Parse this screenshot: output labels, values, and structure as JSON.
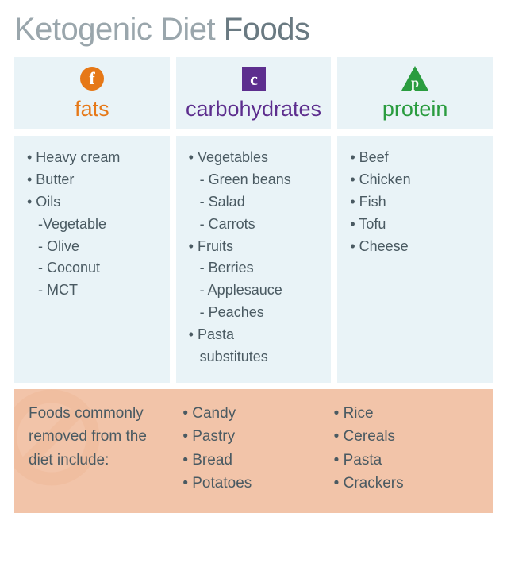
{
  "title_light": "Ketogenic Diet ",
  "title_bold": "Foods",
  "background_color": "#ffffff",
  "panel_color": "#e9f3f7",
  "removed_panel_color": "#f2c4a9",
  "text_color": "#4a5a62",
  "columns": {
    "fats": {
      "icon_letter": "f",
      "icon_shape": "circle",
      "color": "#e67817",
      "title": "fats",
      "items": [
        {
          "text": "Heavy cream",
          "sub": false
        },
        {
          "text": "Butter",
          "sub": false
        },
        {
          "text": "Oils",
          "sub": false
        },
        {
          "text": "Vegetable",
          "sub": true,
          "dash": "-"
        },
        {
          "text": "Olive",
          "sub": true,
          "dash": "- "
        },
        {
          "text": "Coconut",
          "sub": true,
          "dash": "- "
        },
        {
          "text": "MCT",
          "sub": true,
          "dash": "- "
        }
      ]
    },
    "carbs": {
      "icon_letter": "c",
      "icon_shape": "square",
      "color": "#5d2e8e",
      "title": "carbohydrates",
      "items": [
        {
          "text": "Vegetables",
          "sub": false
        },
        {
          "text": "Green beans",
          "sub": true,
          "dash": "- "
        },
        {
          "text": "Salad",
          "sub": true,
          "dash": "- "
        },
        {
          "text": "Carrots",
          "sub": true,
          "dash": "- "
        },
        {
          "text": "Fruits",
          "sub": false
        },
        {
          "text": "Berries",
          "sub": true,
          "dash": "- "
        },
        {
          "text": "Applesauce",
          "sub": true,
          "dash": "- "
        },
        {
          "text": "Peaches",
          "sub": true,
          "dash": "- "
        },
        {
          "text": "Pasta",
          "sub": false
        },
        {
          "text": "substitutes",
          "sub": true,
          "dash": ""
        }
      ]
    },
    "protein": {
      "icon_letter": "p",
      "icon_shape": "triangle",
      "color": "#2a9c3f",
      "title": "protein",
      "items": [
        {
          "text": "Beef",
          "sub": false
        },
        {
          "text": "Chicken",
          "sub": false
        },
        {
          "text": "Fish",
          "sub": false
        },
        {
          "text": "Tofu",
          "sub": false
        },
        {
          "text": "Cheese",
          "sub": false
        }
      ]
    }
  },
  "removed": {
    "label": "Foods commonly removed from the diet include:",
    "no_symbol_color": "#e9a47e",
    "col1": [
      "Candy",
      "Pastry",
      "Bread",
      "Potatoes"
    ],
    "col2": [
      "Rice",
      "Cereals",
      "Pasta",
      "Crackers"
    ]
  }
}
